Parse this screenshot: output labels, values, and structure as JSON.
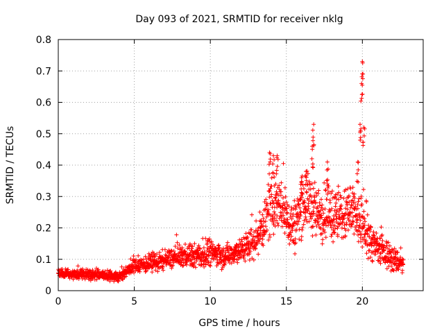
{
  "chart_data": {
    "type": "scatter",
    "title": "Day 093 of 2021, SRMTID for receiver nklg",
    "xlabel": "GPS time / hours",
    "ylabel": "SRMTID / TECUs",
    "xlim": [
      0,
      24
    ],
    "ylim": [
      0,
      0.8
    ],
    "xticks": [
      0,
      5,
      10,
      15,
      20
    ],
    "yticks": [
      0,
      0.1,
      0.2,
      0.3,
      0.4,
      0.5,
      0.6,
      0.7,
      0.8
    ],
    "grid": true,
    "marker": "+",
    "color": "#ff0000",
    "series": [
      {
        "name": "nklg",
        "trend": [
          [
            0.0,
            0.055
          ],
          [
            1.0,
            0.052
          ],
          [
            2.0,
            0.05
          ],
          [
            3.0,
            0.048
          ],
          [
            4.0,
            0.045
          ],
          [
            4.5,
            0.06
          ],
          [
            5.0,
            0.08
          ],
          [
            6.0,
            0.085
          ],
          [
            7.0,
            0.095
          ],
          [
            8.0,
            0.11
          ],
          [
            9.0,
            0.11
          ],
          [
            10.0,
            0.12
          ],
          [
            11.0,
            0.11
          ],
          [
            12.0,
            0.13
          ],
          [
            13.0,
            0.16
          ],
          [
            14.0,
            0.26
          ],
          [
            14.5,
            0.29
          ],
          [
            15.0,
            0.23
          ],
          [
            15.5,
            0.2
          ],
          [
            16.0,
            0.27
          ],
          [
            16.5,
            0.29
          ],
          [
            17.0,
            0.24
          ],
          [
            17.5,
            0.25
          ],
          [
            18.0,
            0.24
          ],
          [
            18.5,
            0.23
          ],
          [
            19.0,
            0.24
          ],
          [
            19.5,
            0.24
          ],
          [
            20.0,
            0.2
          ],
          [
            20.5,
            0.16
          ],
          [
            21.0,
            0.13
          ],
          [
            21.5,
            0.12
          ],
          [
            22.0,
            0.1
          ],
          [
            22.7,
            0.085
          ]
        ],
        "spread": [
          [
            0.0,
            0.012
          ],
          [
            4.5,
            0.012
          ],
          [
            5.0,
            0.018
          ],
          [
            9.0,
            0.03
          ],
          [
            12.0,
            0.03
          ],
          [
            13.0,
            0.045
          ],
          [
            14.0,
            0.07
          ],
          [
            19.5,
            0.07
          ],
          [
            20.5,
            0.05
          ],
          [
            22.7,
            0.025
          ]
        ],
        "peaks": [
          [
            13.9,
            0.44
          ],
          [
            14.15,
            0.43
          ],
          [
            14.4,
            0.43
          ],
          [
            16.0,
            0.36
          ],
          [
            16.3,
            0.38
          ],
          [
            16.7,
            0.46
          ],
          [
            16.8,
            0.53
          ],
          [
            17.7,
            0.41
          ],
          [
            19.7,
            0.41
          ],
          [
            19.85,
            0.53
          ],
          [
            19.95,
            0.66
          ],
          [
            20.0,
            0.73
          ],
          [
            20.1,
            0.52
          ]
        ]
      }
    ]
  }
}
